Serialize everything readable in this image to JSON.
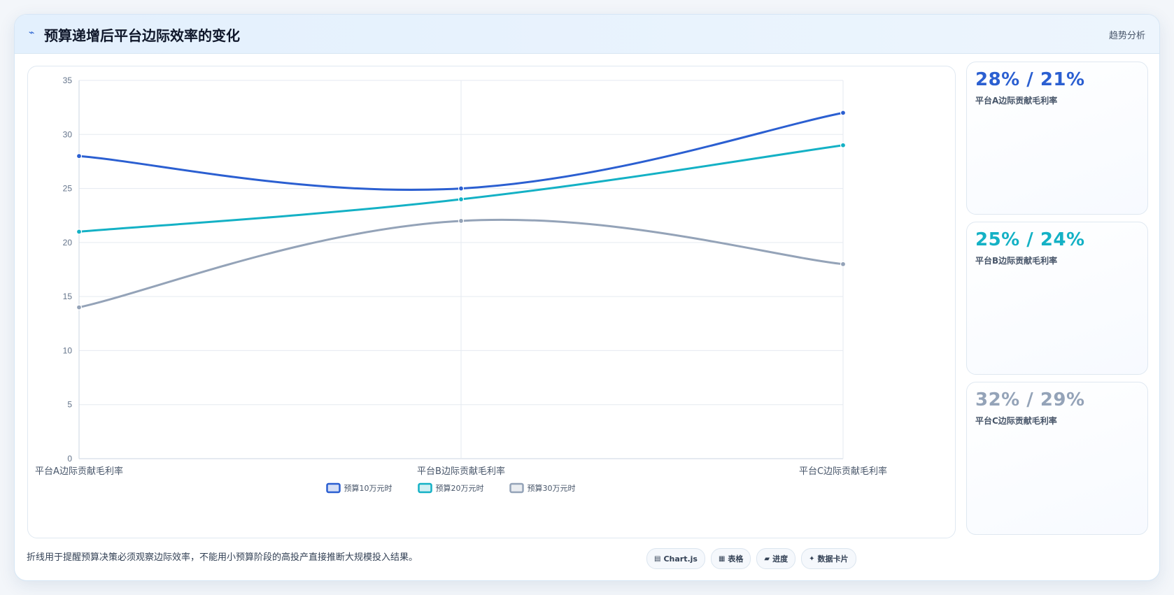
{
  "header": {
    "icon": "trend-icon",
    "icon_glyph": "⌁",
    "title": "预算递增后平台边际效率的变化",
    "tag": "趋势分析"
  },
  "chart_data": {
    "type": "line",
    "categories": [
      "平台A边际贡献毛利率",
      "平台B边际贡献毛利率",
      "平台C边际贡献毛利率"
    ],
    "series": [
      {
        "name": "预算10万元时",
        "values": [
          28,
          25,
          32
        ],
        "color": "#2b5fd1"
      },
      {
        "name": "预算20万元时",
        "values": [
          21,
          24,
          29
        ],
        "color": "#14b1c5"
      },
      {
        "name": "预算30万元时",
        "values": [
          14,
          22,
          18
        ],
        "color": "#94a3b8"
      }
    ],
    "ylim": [
      0,
      35
    ],
    "yticks": [
      0,
      5,
      10,
      15,
      20,
      25,
      30,
      35
    ],
    "grid": true,
    "legend": "bottom",
    "smooth": true
  },
  "kpis": [
    {
      "value": "28% / 21%",
      "label": "平台A边际贡献毛利率",
      "color": "#2b5fd1"
    },
    {
      "value": "25% / 24%",
      "label": "平台B边际贡献毛利率",
      "color": "#14b1c5"
    },
    {
      "value": "32% / 29%",
      "label": "平台C边际贡献毛利率",
      "color": "#94a3b8"
    }
  ],
  "footer": {
    "note": "折线用于提醒预算决策必须观察边际效率，不能用小预算阶段的高投产直接推断大规模投入结果。",
    "chips": [
      {
        "icon": "chart-icon",
        "glyph": "▤",
        "label": "Chart.js"
      },
      {
        "icon": "table-icon",
        "glyph": "▦",
        "label": "表格"
      },
      {
        "icon": "progress-icon",
        "glyph": "▰",
        "label": "进度"
      },
      {
        "icon": "card-icon",
        "glyph": "✦",
        "label": "数据卡片"
      }
    ]
  }
}
